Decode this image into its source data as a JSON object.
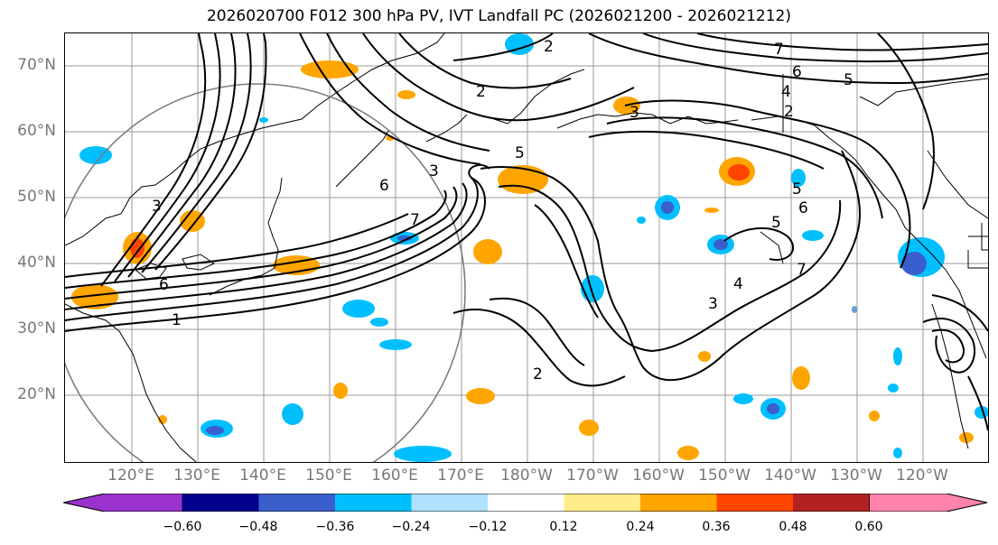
{
  "title": "2026020700 F012 300 hPa PV, IVT Landfall PC (2026021200 - 2026021212)",
  "lat_labels": [
    "70°N",
    "60°N",
    "50°N",
    "40°N",
    "30°N",
    "20°N"
  ],
  "lon_labels": [
    "120°E",
    "130°E",
    "140°E",
    "150°E",
    "160°E",
    "170°E",
    "180°W",
    "170°W",
    "160°W",
    "150°W",
    "140°W",
    "130°W",
    "120°W"
  ],
  "colorbar": {
    "ticks": [
      "−0.60",
      "−0.48",
      "−0.36",
      "−0.24",
      "−0.12",
      "0.12",
      "0.24",
      "0.36",
      "0.48",
      "0.60"
    ],
    "colors": [
      "#9a32cd",
      "#00008b",
      "#3a5fcd",
      "#00bfff",
      "#b0e2ff",
      "#ffffff",
      "#ffec8b",
      "#ffa500",
      "#ff4500",
      "#b22222",
      "#ff82ab"
    ]
  },
  "contour_labels": [
    "1",
    "2",
    "3",
    "4",
    "5",
    "6",
    "7"
  ]
}
